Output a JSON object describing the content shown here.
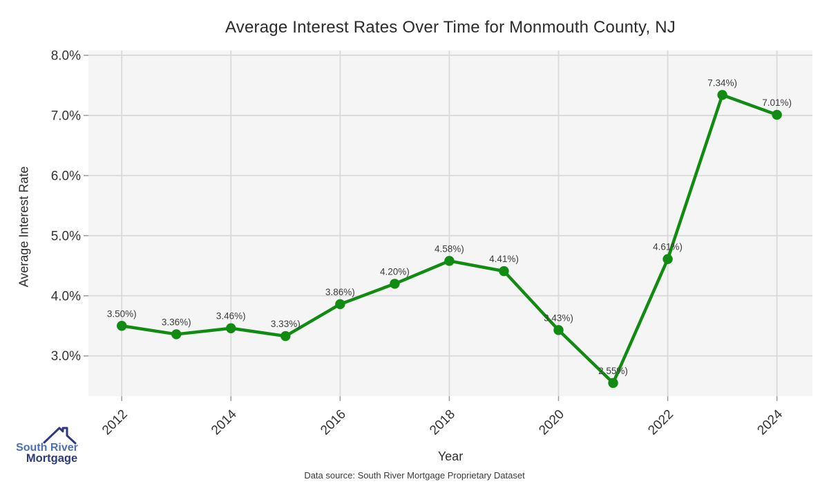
{
  "title": "Average Interest Rates Over Time for Monmouth County, NJ",
  "caption": "Data source: South River Mortgage Proprietary Dataset",
  "logo": {
    "line1": "South River",
    "line2": "Mortgage",
    "text_color_top": "#4a70b5",
    "text_color_bottom": "#2c3a7c"
  },
  "chart_data": {
    "type": "line",
    "title": "Average Interest Rates Over Time for Monmouth County, NJ",
    "xlabel": "Year",
    "ylabel": "Average Interest Rate",
    "x": [
      2012,
      2013,
      2014,
      2015,
      2016,
      2017,
      2018,
      2019,
      2020,
      2021,
      2022,
      2023,
      2024
    ],
    "values": [
      3.5,
      3.36,
      3.46,
      3.33,
      3.86,
      4.2,
      4.58,
      4.41,
      3.43,
      2.55,
      4.61,
      7.34,
      7.01
    ],
    "point_labels": [
      "3.50%)",
      "3.36%)",
      "3.46%)",
      "3.33%)",
      "3.86%)",
      "4.20%)",
      "4.58%)",
      "4.41%)",
      "3.43%)",
      "2.55%)",
      "4.61%)",
      "7.34%)",
      "7.01%)"
    ],
    "series_name": "Average Interest Rate",
    "xlim": [
      2011.39,
      2024.65
    ],
    "ylim": [
      2.33,
      8.08
    ],
    "yticks": [
      3,
      4,
      5,
      6,
      7,
      8
    ],
    "ytick_labels": [
      "3.0%",
      "4.0%",
      "5.0%",
      "6.0%",
      "7.0%",
      "8.0%"
    ],
    "xticks": [
      2012,
      2014,
      2016,
      2018,
      2020,
      2022,
      2024
    ],
    "xtick_labels": [
      "2012",
      "2014",
      "2016",
      "2018",
      "2020",
      "2022",
      "2024"
    ],
    "grid": true,
    "legend": "none",
    "line_color": "#118b11",
    "marker_color": "#118b11",
    "panel_bg": "#f5f5f6",
    "grid_color": "#d9d9d9",
    "tick_color": "#9b9b9b",
    "tick_label_color": "#333333",
    "point_label_color": "#3b3b3b"
  }
}
